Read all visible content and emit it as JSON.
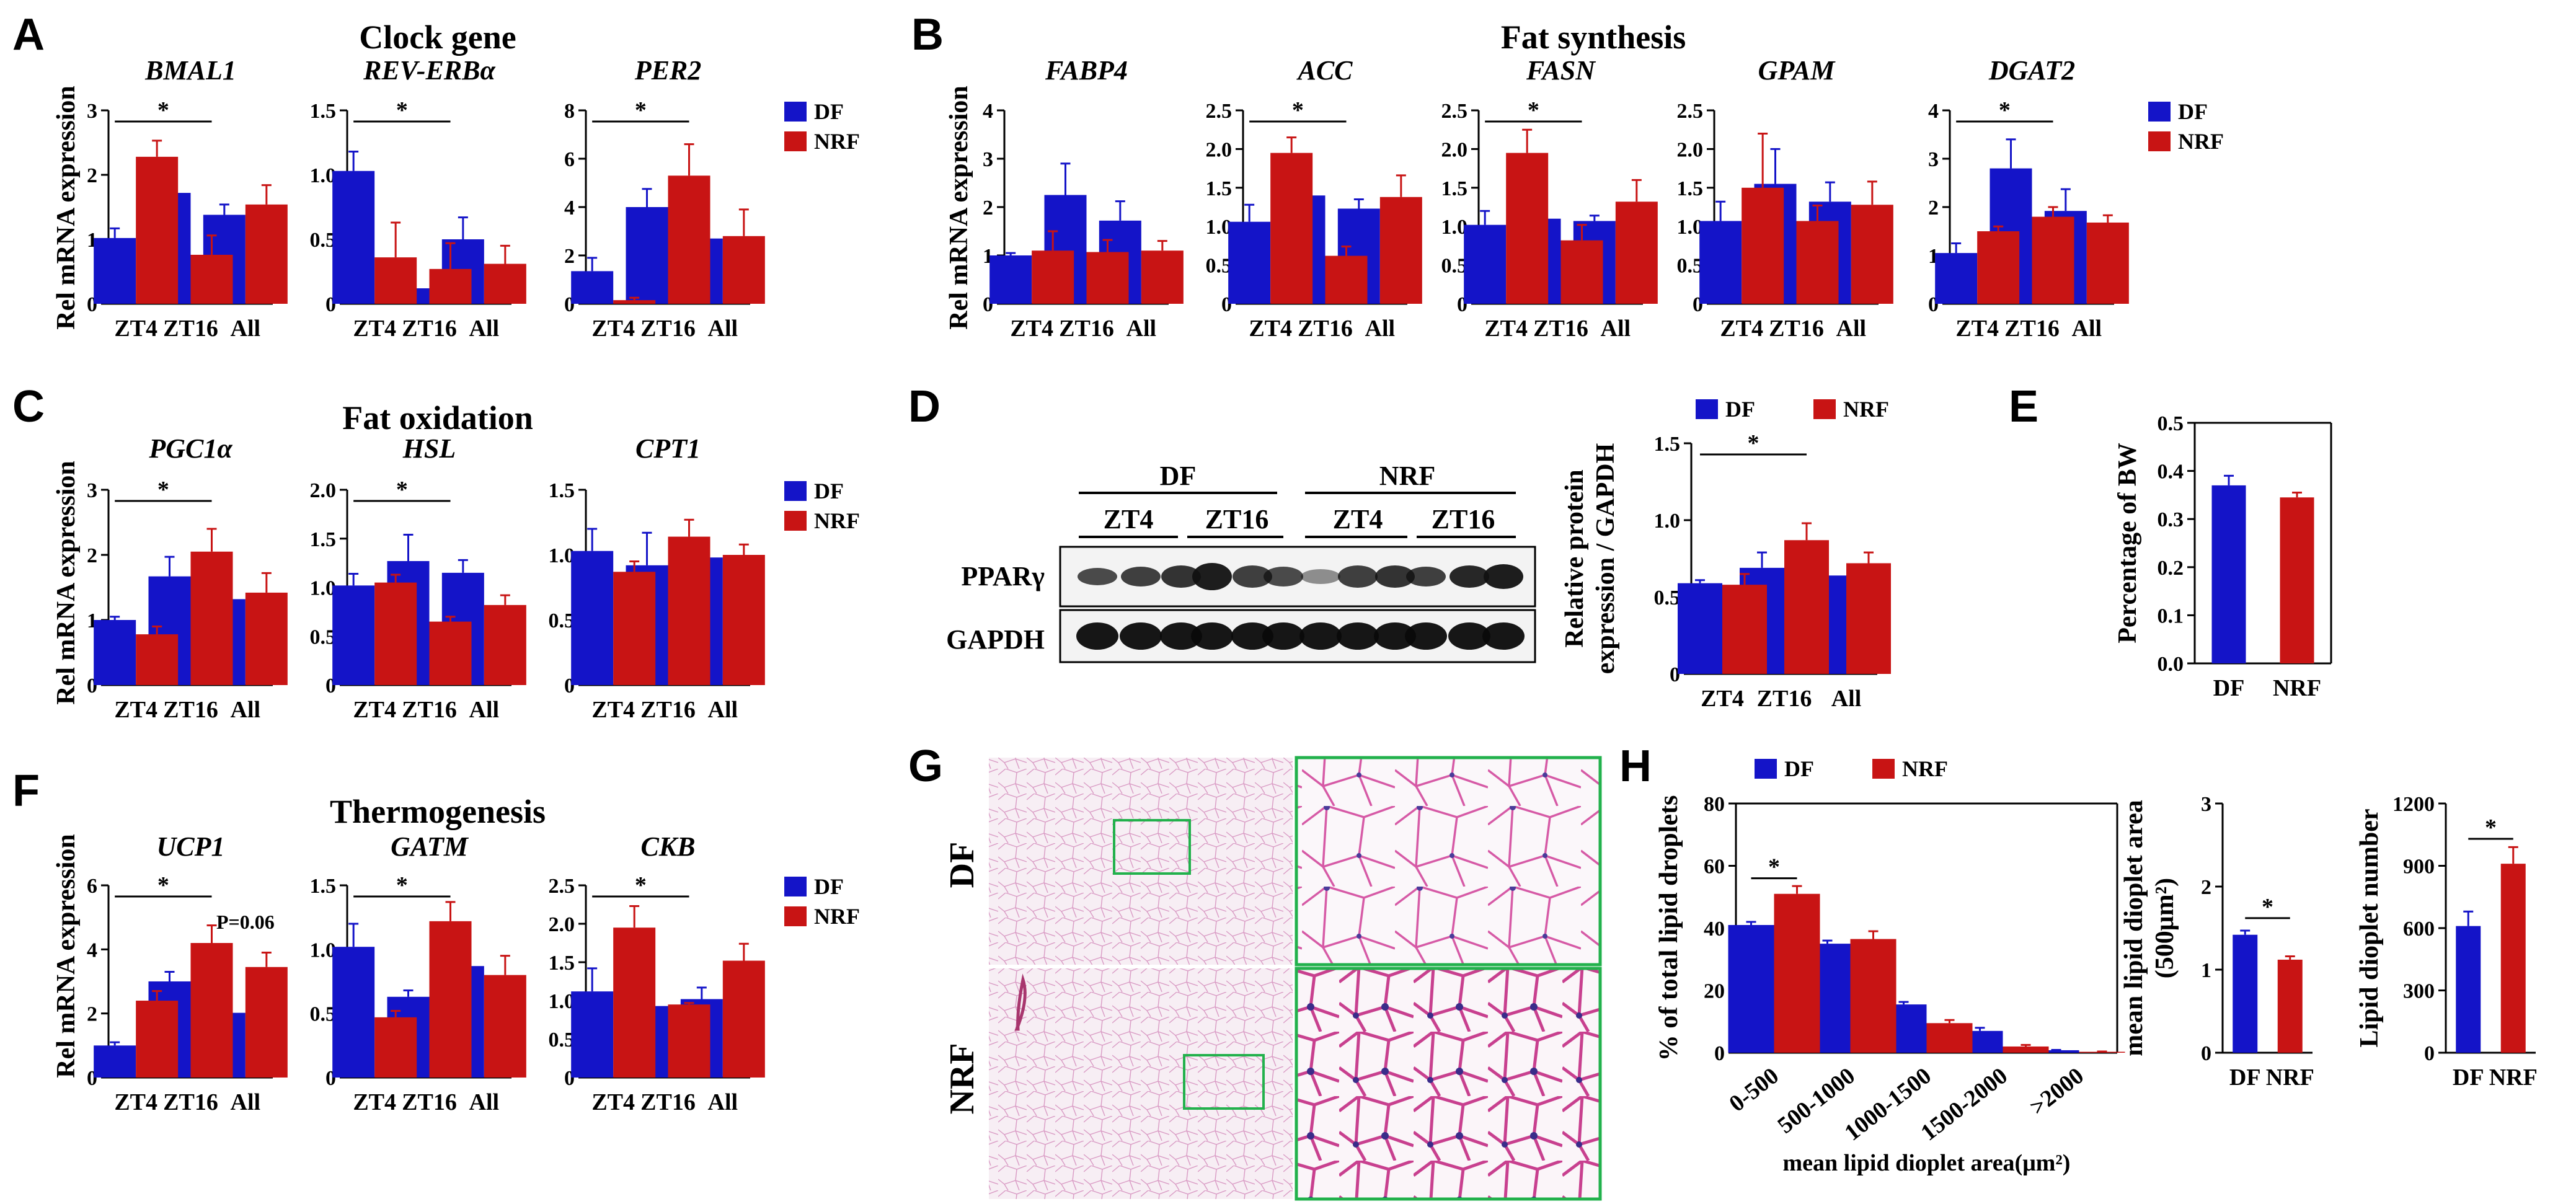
{
  "colors": {
    "DF": "#1414c8",
    "NRF": "#c81414"
  },
  "legend": {
    "df": "DF",
    "nrf": "NRF"
  },
  "panels": {
    "A": {
      "letter": "A",
      "title": "Clock gene"
    },
    "B": {
      "letter": "B",
      "title": "Fat synthesis"
    },
    "C": {
      "letter": "C",
      "title": "Fat oxidation"
    },
    "D": {
      "letter": "D"
    },
    "E": {
      "letter": "E"
    },
    "F": {
      "letter": "F",
      "title": "Thermogenesis"
    },
    "G": {
      "letter": "G"
    },
    "H": {
      "letter": "H"
    }
  },
  "ylabels": {
    "rel_mrna": "Rel mRNA expression"
  },
  "blot": {
    "groups": [
      "DF",
      "NRF"
    ],
    "timepoints": [
      "ZT4",
      "ZT16",
      "ZT4",
      "ZT16"
    ],
    "bands": [
      "PPARγ",
      "GAPDH"
    ]
  },
  "histology": {
    "rows": [
      "DF",
      "NRF"
    ]
  },
  "chart_data": [
    {
      "id": "A1",
      "type": "bar",
      "title": "BMAL1",
      "ylabel": "Rel mRNA expression",
      "ylim": [
        0,
        3
      ],
      "yticks": [
        0,
        1,
        2,
        3
      ],
      "categories": [
        "ZT4",
        "ZT16",
        "All"
      ],
      "series": [
        {
          "name": "DF",
          "values": [
            1.02,
            1.72,
            1.38
          ],
          "errors": [
            0.15,
            0.12,
            0.16
          ]
        },
        {
          "name": "NRF",
          "values": [
            2.28,
            0.76,
            1.54
          ],
          "errors": [
            0.25,
            0.3,
            0.3
          ]
        }
      ],
      "annotations": [
        "*"
      ]
    },
    {
      "id": "A2",
      "type": "bar",
      "title": "REV-ERBα",
      "ylim": [
        0,
        1.5
      ],
      "yticks": [
        0,
        0.5,
        1.0,
        1.5
      ],
      "categories": [
        "ZT4",
        "ZT16",
        "All"
      ],
      "series": [
        {
          "name": "DF",
          "values": [
            1.03,
            0.12,
            0.5
          ],
          "errors": [
            0.15,
            0.02,
            0.17
          ]
        },
        {
          "name": "NRF",
          "values": [
            0.36,
            0.27,
            0.31
          ],
          "errors": [
            0.27,
            0.2,
            0.14
          ]
        }
      ],
      "annotations": [
        "*"
      ]
    },
    {
      "id": "A3",
      "type": "bar",
      "title": "PER2",
      "ylim": [
        0,
        8
      ],
      "yticks": [
        0,
        2,
        4,
        6,
        8
      ],
      "categories": [
        "ZT4",
        "ZT16",
        "All"
      ],
      "series": [
        {
          "name": "DF",
          "values": [
            1.35,
            4.0,
            2.7
          ],
          "errors": [
            0.55,
            0.75,
            0.6
          ]
        },
        {
          "name": "NRF",
          "values": [
            0.15,
            5.3,
            2.8
          ],
          "errors": [
            0.1,
            1.3,
            1.1
          ]
        }
      ],
      "annotations": [
        "*"
      ],
      "legend": [
        "DF",
        "NRF"
      ]
    },
    {
      "id": "B1",
      "type": "bar",
      "title": "FABP4",
      "ylabel": "Rel mRNA expression",
      "ylim": [
        0,
        4
      ],
      "yticks": [
        0,
        1,
        2,
        3,
        4
      ],
      "categories": [
        "ZT4",
        "ZT16",
        "All"
      ],
      "series": [
        {
          "name": "DF",
          "values": [
            1.0,
            2.25,
            1.72
          ],
          "errors": [
            0.05,
            0.65,
            0.4
          ]
        },
        {
          "name": "NRF",
          "values": [
            1.1,
            1.07,
            1.1
          ],
          "errors": [
            0.4,
            0.25,
            0.2
          ]
        }
      ]
    },
    {
      "id": "B2",
      "type": "bar",
      "title": "ACC",
      "ylim": [
        0,
        2.5
      ],
      "yticks": [
        0,
        0.5,
        1.0,
        1.5,
        2.0,
        2.5
      ],
      "categories": [
        "ZT4",
        "ZT16",
        "All"
      ],
      "series": [
        {
          "name": "DF",
          "values": [
            1.06,
            1.4,
            1.23
          ],
          "errors": [
            0.22,
            0.18,
            0.12
          ]
        },
        {
          "name": "NRF",
          "values": [
            1.95,
            0.62,
            1.38
          ],
          "errors": [
            0.2,
            0.12,
            0.28
          ]
        }
      ],
      "annotations": [
        "*"
      ]
    },
    {
      "id": "B3",
      "type": "bar",
      "title": "FASN",
      "ylim": [
        0,
        2.5
      ],
      "yticks": [
        0,
        0.5,
        1.0,
        1.5,
        2.0,
        2.5
      ],
      "categories": [
        "ZT4",
        "ZT16",
        "All"
      ],
      "series": [
        {
          "name": "DF",
          "values": [
            1.02,
            1.1,
            1.07
          ],
          "errors": [
            0.18,
            0.1,
            0.07
          ]
        },
        {
          "name": "NRF",
          "values": [
            1.95,
            0.82,
            1.32
          ],
          "errors": [
            0.3,
            0.2,
            0.28
          ]
        }
      ],
      "annotations": [
        "*"
      ]
    },
    {
      "id": "B4",
      "type": "bar",
      "title": "GPAM",
      "ylim": [
        0,
        2.5
      ],
      "yticks": [
        0,
        0.5,
        1.0,
        1.5,
        2.0,
        2.5
      ],
      "categories": [
        "ZT4",
        "ZT16",
        "All"
      ],
      "series": [
        {
          "name": "DF",
          "values": [
            1.07,
            1.55,
            1.32
          ],
          "errors": [
            0.25,
            0.45,
            0.25
          ]
        },
        {
          "name": "NRF",
          "values": [
            1.5,
            1.07,
            1.28
          ],
          "errors": [
            0.7,
            0.2,
            0.3
          ]
        }
      ]
    },
    {
      "id": "B5",
      "type": "bar",
      "title": "DGAT2",
      "ylim": [
        0,
        4
      ],
      "yticks": [
        0,
        1,
        2,
        3,
        4
      ],
      "categories": [
        "ZT4",
        "ZT16",
        "All"
      ],
      "series": [
        {
          "name": "DF",
          "values": [
            1.05,
            2.8,
            1.92
          ],
          "errors": [
            0.2,
            0.6,
            0.45
          ]
        },
        {
          "name": "NRF",
          "values": [
            1.5,
            1.8,
            1.68
          ],
          "errors": [
            0.1,
            0.2,
            0.15
          ]
        }
      ],
      "annotations": [
        "*"
      ],
      "legend": [
        "DF",
        "NRF"
      ]
    },
    {
      "id": "C1",
      "type": "bar",
      "title": "PGC1α",
      "ylabel": "Rel mRNA expression",
      "ylim": [
        0,
        3
      ],
      "yticks": [
        0,
        1,
        2,
        3
      ],
      "categories": [
        "ZT4",
        "ZT16",
        "All"
      ],
      "series": [
        {
          "name": "DF",
          "values": [
            1.0,
            1.67,
            1.32
          ],
          "errors": [
            0.05,
            0.3,
            0.18
          ]
        },
        {
          "name": "NRF",
          "values": [
            0.78,
            2.05,
            1.42
          ],
          "errors": [
            0.12,
            0.35,
            0.3
          ]
        }
      ],
      "annotations": [
        "*"
      ]
    },
    {
      "id": "C2",
      "type": "bar",
      "title": "HSL",
      "ylim": [
        0,
        2.0
      ],
      "yticks": [
        0,
        0.5,
        1.0,
        1.5,
        2.0
      ],
      "categories": [
        "ZT4",
        "ZT16",
        "All"
      ],
      "series": [
        {
          "name": "DF",
          "values": [
            1.02,
            1.27,
            1.15
          ],
          "errors": [
            0.12,
            0.27,
            0.13
          ]
        },
        {
          "name": "NRF",
          "values": [
            1.05,
            0.65,
            0.82
          ],
          "errors": [
            0.08,
            0.05,
            0.1
          ]
        }
      ],
      "annotations": [
        "*"
      ]
    },
    {
      "id": "C3",
      "type": "bar",
      "title": "CPT1",
      "ylim": [
        0,
        1.5
      ],
      "yticks": [
        0,
        0.5,
        1.0,
        1.5
      ],
      "categories": [
        "ZT4",
        "ZT16",
        "All"
      ],
      "series": [
        {
          "name": "DF",
          "values": [
            1.03,
            0.92,
            0.98
          ],
          "errors": [
            0.17,
            0.25,
            0.13
          ]
        },
        {
          "name": "NRF",
          "values": [
            0.87,
            1.14,
            1.0
          ],
          "errors": [
            0.08,
            0.13,
            0.08
          ]
        }
      ],
      "legend": [
        "DF",
        "NRF"
      ]
    },
    {
      "id": "D1",
      "type": "bar",
      "title": "",
      "ylabel": "Relative protein expression / GAPDH",
      "ylim": [
        0,
        1.5
      ],
      "yticks": [
        0,
        0.5,
        1.0,
        1.5
      ],
      "categories": [
        "ZT4",
        "ZT16",
        "All"
      ],
      "series": [
        {
          "name": "DF",
          "values": [
            0.59,
            0.69,
            0.64
          ],
          "errors": [
            0.02,
            0.1,
            0.05
          ]
        },
        {
          "name": "NRF",
          "values": [
            0.58,
            0.87,
            0.72
          ],
          "errors": [
            0.07,
            0.11,
            0.07
          ]
        }
      ],
      "annotations": [
        "*"
      ],
      "legend": [
        "DF",
        "NRF"
      ]
    },
    {
      "id": "E1",
      "type": "bar",
      "title": "",
      "ylabel": "Percentage of BW",
      "ylim": [
        0,
        0.5
      ],
      "yticks": [
        0,
        0.1,
        0.2,
        0.3,
        0.4,
        0.5
      ],
      "categories": [
        "DF",
        "NRF"
      ],
      "values": [
        0.37,
        0.345
      ],
      "errors": [
        0.02,
        0.01
      ]
    },
    {
      "id": "F1",
      "type": "bar",
      "title": "UCP1",
      "ylabel": "Rel mRNA expression",
      "ylim": [
        0,
        6
      ],
      "yticks": [
        0,
        2,
        4,
        6
      ],
      "categories": [
        "ZT4",
        "ZT16",
        "All"
      ],
      "series": [
        {
          "name": "DF",
          "values": [
            1.0,
            3.0,
            2.02
          ],
          "errors": [
            0.1,
            0.3,
            0.4
          ]
        },
        {
          "name": "NRF",
          "values": [
            2.4,
            4.2,
            3.45
          ],
          "errors": [
            0.3,
            0.55,
            0.45
          ]
        }
      ],
      "annotations": [
        "*",
        "P=0.06"
      ]
    },
    {
      "id": "F2",
      "type": "bar",
      "title": "GATM",
      "ylim": [
        0,
        1.5
      ],
      "yticks": [
        0,
        0.5,
        1.0,
        1.5
      ],
      "categories": [
        "ZT4",
        "ZT16",
        "All"
      ],
      "series": [
        {
          "name": "DF",
          "values": [
            1.02,
            0.63,
            0.87
          ],
          "errors": [
            0.18,
            0.05,
            0.1
          ]
        },
        {
          "name": "NRF",
          "values": [
            0.47,
            1.22,
            0.8
          ],
          "errors": [
            0.05,
            0.15,
            0.15
          ]
        }
      ],
      "annotations": [
        "*"
      ]
    },
    {
      "id": "F3",
      "type": "bar",
      "title": "CKB",
      "ylim": [
        0,
        2.5
      ],
      "yticks": [
        0,
        0.5,
        1.0,
        1.5,
        2.0,
        2.5
      ],
      "categories": [
        "ZT4",
        "ZT16",
        "All"
      ],
      "series": [
        {
          "name": "DF",
          "values": [
            1.12,
            0.93,
            1.02
          ],
          "errors": [
            0.3,
            0.2,
            0.15
          ]
        },
        {
          "name": "NRF",
          "values": [
            1.95,
            0.95,
            1.52
          ],
          "errors": [
            0.28,
            0.02,
            0.22
          ]
        }
      ],
      "annotations": [
        "*"
      ],
      "legend": [
        "DF",
        "NRF"
      ]
    },
    {
      "id": "H1",
      "type": "bar",
      "title": "",
      "ylabel": "% of total lipid droplets",
      "xlabel": "mean lipid dioplet area(μm²)",
      "ylim": [
        0,
        80
      ],
      "yticks": [
        0,
        20,
        40,
        60,
        80
      ],
      "categories": [
        "0-500",
        "500-1000",
        "1000-1500",
        "1500-2000",
        ">2000"
      ],
      "series": [
        {
          "name": "DF",
          "values": [
            41,
            35,
            15.5,
            7,
            0.8
          ],
          "errors": [
            1,
            1,
            0.8,
            1,
            0.1
          ]
        },
        {
          "name": "NRF",
          "values": [
            51,
            36.5,
            9.5,
            2,
            0.3
          ],
          "errors": [
            2.5,
            2.5,
            1,
            0.5,
            0.1
          ]
        }
      ],
      "annotations": [
        "*"
      ],
      "legend": [
        "DF",
        "NRF"
      ]
    },
    {
      "id": "H2",
      "type": "bar",
      "title": "",
      "ylabel": "mean lipid dioplet area (500μm²)",
      "ylim": [
        0,
        3
      ],
      "yticks": [
        0,
        1,
        2,
        3
      ],
      "categories": [
        "DF",
        "NRF"
      ],
      "values": [
        1.42,
        1.12
      ],
      "errors": [
        0.05,
        0.04
      ],
      "annotations": [
        "*"
      ]
    },
    {
      "id": "H3",
      "type": "bar",
      "title": "",
      "ylabel": "Lipid dioplet number",
      "ylim": [
        0,
        1200
      ],
      "yticks": [
        0,
        300,
        600,
        900,
        1200
      ],
      "categories": [
        "DF",
        "NRF"
      ],
      "values": [
        610,
        910
      ],
      "errors": [
        70,
        80
      ],
      "annotations": [
        "*"
      ]
    }
  ]
}
